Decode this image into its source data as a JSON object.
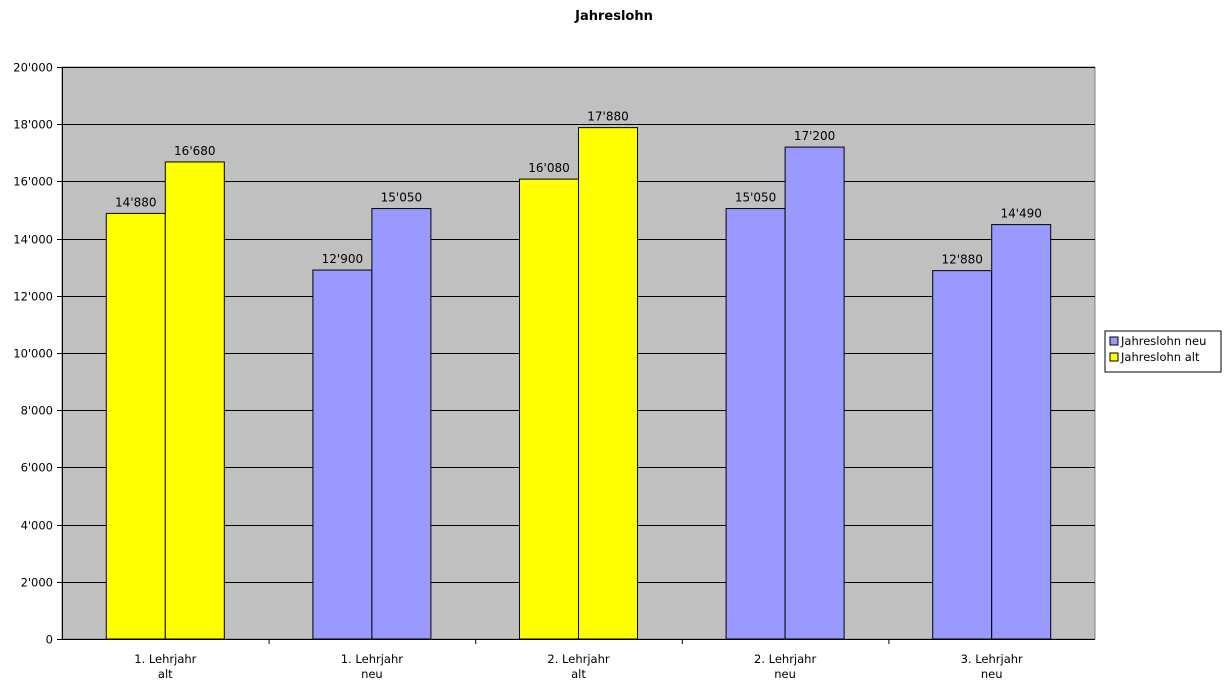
{
  "chart_data": {
    "type": "bar",
    "title": "Jahreslohn",
    "xlabel": "",
    "ylabel": "",
    "ylim": [
      0,
      20000
    ],
    "yticks": [
      0,
      2000,
      4000,
      6000,
      8000,
      10000,
      12000,
      14000,
      16000,
      18000,
      20000
    ],
    "ytick_labels": [
      "0",
      "2'000",
      "4'000",
      "6'000",
      "8'000",
      "10'000",
      "12'000",
      "14'000",
      "16'000",
      "18'000",
      "20'000"
    ],
    "grid": true,
    "legend_position": "right",
    "categories": [
      [
        "1. Lehrjahr",
        "alt"
      ],
      [
        "1. Lehrjahr",
        "neu"
      ],
      [
        "2. Lehrjahr",
        "alt"
      ],
      [
        "2. Lehrjahr",
        "neu"
      ],
      [
        "3. Lehrjahr",
        "neu"
      ]
    ],
    "bars": [
      {
        "values": [
          14880,
          16680
        ],
        "labels": [
          "14'880",
          "16'680"
        ],
        "color": "#ffff00"
      },
      {
        "values": [
          12900,
          15050
        ],
        "labels": [
          "12'900",
          "15'050"
        ],
        "color": "#9999ff"
      },
      {
        "values": [
          16080,
          17880
        ],
        "labels": [
          "16'080",
          "17'880"
        ],
        "color": "#ffff00"
      },
      {
        "values": [
          15050,
          17200
        ],
        "labels": [
          "15'050",
          "17'200"
        ],
        "color": "#9999ff"
      },
      {
        "values": [
          12880,
          14490
        ],
        "labels": [
          "12'880",
          "14'490"
        ],
        "color": "#9999ff"
      }
    ],
    "legend": [
      {
        "label": "Jahreslohn neu",
        "color": "#9999ff"
      },
      {
        "label": "Jahreslohn alt",
        "color": "#ffff00"
      }
    ],
    "plot_background": "#c0c0c0"
  }
}
